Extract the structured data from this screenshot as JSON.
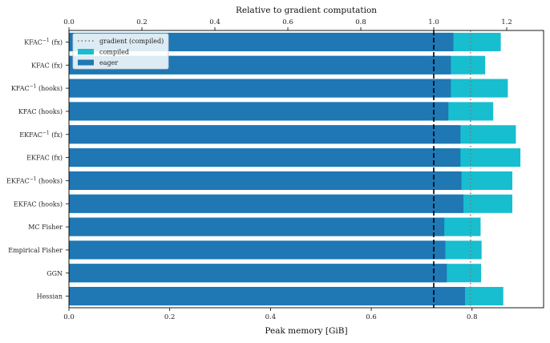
{
  "chart_data": {
    "type": "bar",
    "orientation": "horizontal",
    "categories": [
      "KFAC$^{-1}$ (fx)",
      "KFAC (fx)",
      "KFAC$^{-1}$ (hooks)",
      "KFAC (hooks)",
      "EKFAC$^{-1}$ (fx)",
      "EKFAC (fx)",
      "EKFAC$^{-1}$ (hooks)",
      "EKFAC (hooks)",
      "MC Fisher",
      "Empirical Fisher",
      "GGN",
      "Hessian"
    ],
    "category_display": [
      {
        "base": "KFAC",
        "sup": "−1",
        "suffix": " (fx)"
      },
      {
        "base": "KFAC (fx)",
        "sup": "",
        "suffix": ""
      },
      {
        "base": "KFAC",
        "sup": "−1",
        "suffix": " (hooks)"
      },
      {
        "base": "KFAC (hooks)",
        "sup": "",
        "suffix": ""
      },
      {
        "base": "EKFAC",
        "sup": "−1",
        "suffix": " (fx)"
      },
      {
        "base": "EKFAC (fx)",
        "sup": "",
        "suffix": ""
      },
      {
        "base": "EKFAC",
        "sup": "−1",
        "suffix": " (hooks)"
      },
      {
        "base": "EKFAC (hooks)",
        "sup": "",
        "suffix": ""
      },
      {
        "base": "MC Fisher",
        "sup": "",
        "suffix": ""
      },
      {
        "base": "Empirical Fisher",
        "sup": "",
        "suffix": ""
      },
      {
        "base": "GGN",
        "sup": "",
        "suffix": ""
      },
      {
        "base": "Hessian",
        "sup": "",
        "suffix": ""
      }
    ],
    "series": [
      {
        "name": "compiled",
        "color": "#17becf",
        "values": [
          0.857,
          0.826,
          0.871,
          0.842,
          0.887,
          0.896,
          0.88,
          0.88,
          0.817,
          0.819,
          0.818,
          0.862
        ]
      },
      {
        "name": "eager",
        "color": "#1f77b4",
        "values": [
          0.763,
          0.758,
          0.758,
          0.753,
          0.777,
          0.777,
          0.779,
          0.783,
          0.745,
          0.747,
          0.75,
          0.786
        ]
      }
    ],
    "reference_lines": [
      {
        "name": "gradient (eager)",
        "axis": "bottom",
        "value": 0.724,
        "style": "dashed",
        "color": "#000000",
        "in_legend": false
      },
      {
        "name": "gradient (compiled)",
        "axis": "bottom",
        "value": 0.797,
        "style": "dotted",
        "color": "#777777",
        "in_legend": true
      }
    ],
    "xlabel": "Peak memory [GiB]",
    "xlim": [
      0,
      0.942
    ],
    "xticks": [
      0.0,
      0.2,
      0.4,
      0.6,
      0.8
    ],
    "xtick_labels": [
      "0.0",
      "0.2",
      "0.4",
      "0.6",
      "0.8"
    ],
    "top_axis": {
      "label": "Relative to gradient computation",
      "xlim": [
        0,
        1.301
      ],
      "ticks": [
        0.0,
        0.2,
        0.4,
        0.6,
        0.8,
        1.0,
        1.2
      ],
      "tick_labels": [
        "0.0",
        "0.2",
        "0.4",
        "0.6",
        "0.8",
        "1.0",
        "1.2"
      ]
    },
    "grid": false,
    "legend": {
      "placement": "top-left",
      "entries": [
        "gradient (compiled)",
        "compiled",
        "eager"
      ]
    }
  }
}
